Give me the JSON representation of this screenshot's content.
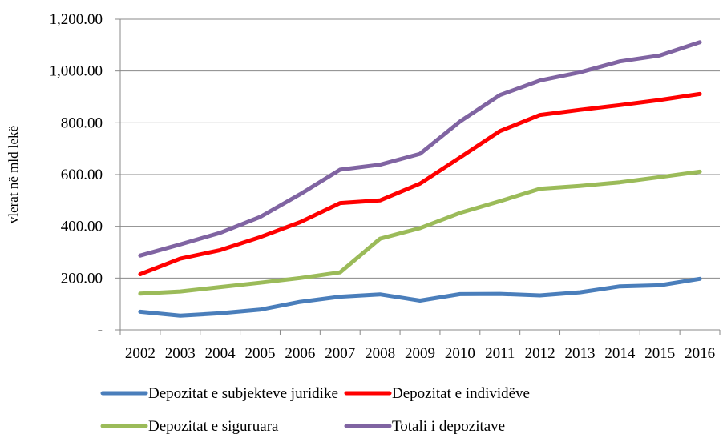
{
  "chart_data": {
    "type": "line",
    "title": "",
    "xlabel": "",
    "ylabel": "vlerat në mld lekë",
    "categories": [
      "2002",
      "2003",
      "2004",
      "2005",
      "2006",
      "2007",
      "2008",
      "2009",
      "2010",
      "2011",
      "2012",
      "2013",
      "2014",
      "2015",
      "2016"
    ],
    "ylim": [
      0,
      1200
    ],
    "y_ticks": [
      {
        "value": 0,
        "label": "-"
      },
      {
        "value": 200,
        "label": "200.00"
      },
      {
        "value": 400,
        "label": "400.00"
      },
      {
        "value": 600,
        "label": "600.00"
      },
      {
        "value": 800,
        "label": "800.00"
      },
      {
        "value": 1000,
        "label": "1,000.00"
      },
      {
        "value": 1200,
        "label": "1,200.00"
      }
    ],
    "grid": true,
    "legend_position": "bottom",
    "series": [
      {
        "name": "Depozitat e subjekteve juridike",
        "color": "#4a7ebb",
        "values": [
          70,
          55,
          64,
          78,
          108,
          128,
          137,
          113,
          138,
          139,
          133,
          145,
          168,
          172,
          197
        ]
      },
      {
        "name": "Depozitat e individëve",
        "color": "#ff0000",
        "values": [
          215,
          275,
          308,
          358,
          416,
          490,
          500,
          565,
          666,
          768,
          830,
          850,
          868,
          888,
          911
        ]
      },
      {
        "name": "Depozitat e siguruara",
        "color": "#9bbb59",
        "values": [
          140,
          148,
          165,
          182,
          200,
          222,
          352,
          393,
          452,
          497,
          545,
          556,
          570,
          590,
          611
        ]
      },
      {
        "name": "Totali i depozitave",
        "color": "#8064a2",
        "values": [
          287,
          330,
          375,
          436,
          524,
          619,
          638,
          680,
          805,
          907,
          963,
          995,
          1037,
          1060,
          1111
        ]
      }
    ]
  }
}
